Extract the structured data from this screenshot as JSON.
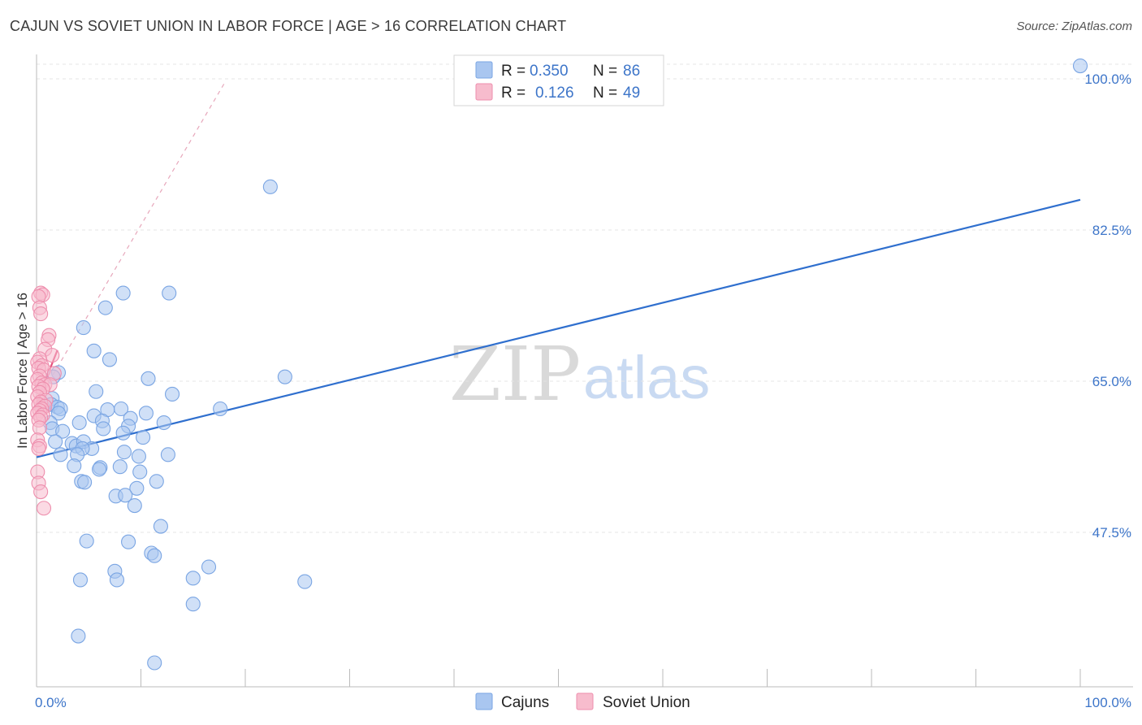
{
  "title": "CAJUN VS SOVIET UNION IN LABOR FORCE | AGE > 16 CORRELATION CHART",
  "source": "Source: ZipAtlas.com",
  "watermark": {
    "zip": "ZIP",
    "atlas": "atlas"
  },
  "legend_top": {
    "rows": [
      {
        "r_label": "R =",
        "r_value": "0.350",
        "n_label": "N =",
        "n_value": "86",
        "color": "#a9c6f0",
        "border": "#7aa5e3"
      },
      {
        "r_label": "R =",
        "r_value": "0.126",
        "n_label": "N =",
        "n_value": "49",
        "color": "#f7bccd",
        "border": "#ee8ead"
      }
    ]
  },
  "legend_bottom": [
    {
      "label": "Cajuns",
      "color": "#a9c6f0",
      "border": "#7aa5e3"
    },
    {
      "label": "Soviet Union",
      "color": "#f7bccd",
      "border": "#ee8ead"
    }
  ],
  "chart_data": {
    "type": "scatter",
    "title": "CAJUN VS SOVIET UNION IN LABOR FORCE | AGE > 16 CORRELATION CHART",
    "xlabel": "",
    "ylabel": "In Labor Force | Age > 16",
    "xlim": [
      0,
      100
    ],
    "ylim": [
      35.5,
      102
    ],
    "y_ticks": [
      47.5,
      65.0,
      82.5,
      100.0
    ],
    "y_tick_labels": [
      "47.5%",
      "65.0%",
      "82.5%",
      "100.0%"
    ],
    "x_tick_labels": [
      "0.0%",
      "100.0%"
    ],
    "grid": true,
    "legend_position": "top-center",
    "series": [
      {
        "name": "Cajuns",
        "color": "#7aa5e3",
        "fill": "#a9c6f0",
        "trend": {
          "x": [
            0,
            100
          ],
          "y": [
            56.2,
            86.0
          ],
          "color": "#2f6fce"
        },
        "points": [
          [
            100,
            101.5
          ],
          [
            22.4,
            87.5
          ],
          [
            8.3,
            75.2
          ],
          [
            12.7,
            75.2
          ],
          [
            6.6,
            73.5
          ],
          [
            4.5,
            71.2
          ],
          [
            5.5,
            68.5
          ],
          [
            7,
            67.5
          ],
          [
            2.1,
            66
          ],
          [
            10.7,
            65.3
          ],
          [
            23.8,
            65.5
          ],
          [
            1.6,
            65.5
          ],
          [
            1.5,
            63
          ],
          [
            5.7,
            63.8
          ],
          [
            13,
            63.5
          ],
          [
            1.4,
            62.3
          ],
          [
            2,
            62
          ],
          [
            0.6,
            62
          ],
          [
            2.3,
            61.8
          ],
          [
            6.8,
            61.7
          ],
          [
            8.1,
            61.8
          ],
          [
            17.6,
            61.8
          ],
          [
            2.1,
            61.3
          ],
          [
            10.5,
            61.3
          ],
          [
            5.5,
            61
          ],
          [
            9,
            60.7
          ],
          [
            6.3,
            60.4
          ],
          [
            1.3,
            60.2
          ],
          [
            4.1,
            60.2
          ],
          [
            12.2,
            60.2
          ],
          [
            8.8,
            59.8
          ],
          [
            1.5,
            59.5
          ],
          [
            2.5,
            59.2
          ],
          [
            6.4,
            59.5
          ],
          [
            8.3,
            59
          ],
          [
            10.2,
            58.5
          ],
          [
            1.8,
            58
          ],
          [
            3.4,
            57.8
          ],
          [
            3.8,
            57.5
          ],
          [
            4.5,
            58
          ],
          [
            5.3,
            57.2
          ],
          [
            4.4,
            57.2
          ],
          [
            8.4,
            56.8
          ],
          [
            9.8,
            56.3
          ],
          [
            12.6,
            56.5
          ],
          [
            2.3,
            56.5
          ],
          [
            3.9,
            56.5
          ],
          [
            3.6,
            55.2
          ],
          [
            6.1,
            55
          ],
          [
            6,
            54.8
          ],
          [
            8,
            55.1
          ],
          [
            9.9,
            54.5
          ],
          [
            4.3,
            53.4
          ],
          [
            4.6,
            53.3
          ],
          [
            11.5,
            53.4
          ],
          [
            9.6,
            52.6
          ],
          [
            7.6,
            51.7
          ],
          [
            8.5,
            51.8
          ],
          [
            9.4,
            50.6
          ],
          [
            11.9,
            48.2
          ],
          [
            4.8,
            46.5
          ],
          [
            8.8,
            46.4
          ],
          [
            11,
            45.1
          ],
          [
            11.3,
            44.8
          ],
          [
            16.5,
            43.5
          ],
          [
            7.5,
            43
          ],
          [
            4.2,
            42
          ],
          [
            7.7,
            42
          ],
          [
            15,
            42.2
          ],
          [
            25.7,
            41.8
          ],
          [
            15,
            39.2
          ],
          [
            4,
            35.5
          ],
          [
            11.3,
            32.4
          ]
        ]
      },
      {
        "name": "Soviet Union",
        "color": "#ee8ead",
        "fill": "#f7bccd",
        "trend": {
          "x": [
            0,
            2
          ],
          "y": [
            62.5,
            68.6
          ],
          "color": "#e5507d",
          "extension_x": [
            0,
            18
          ],
          "extension_y": [
            62.5,
            99.5
          ]
        },
        "points": [
          [
            0.4,
            75.2
          ],
          [
            0.6,
            75
          ],
          [
            0.2,
            74.8
          ],
          [
            0.3,
            73.5
          ],
          [
            0.4,
            72.8
          ],
          [
            1.2,
            70.3
          ],
          [
            1.1,
            69.8
          ],
          [
            0.8,
            68.7
          ],
          [
            1.5,
            68
          ],
          [
            0.3,
            67.6
          ],
          [
            0.1,
            67.2
          ],
          [
            0.5,
            66.8
          ],
          [
            0.2,
            66.5
          ],
          [
            0.7,
            66.3
          ],
          [
            1.7,
            65.9
          ],
          [
            0.3,
            65.6
          ],
          [
            0.1,
            65.2
          ],
          [
            0.5,
            64.8
          ],
          [
            0.8,
            64.6
          ],
          [
            1.3,
            64.6
          ],
          [
            0.2,
            64.4
          ],
          [
            0.6,
            64.1
          ],
          [
            0.3,
            63.7
          ],
          [
            0.1,
            63.2
          ],
          [
            0.9,
            62.8
          ],
          [
            0.4,
            62.6
          ],
          [
            0.2,
            62.3
          ],
          [
            0.8,
            62.1
          ],
          [
            0.5,
            61.8
          ],
          [
            0.3,
            61.6
          ],
          [
            0.1,
            61.3
          ],
          [
            0.6,
            61.1
          ],
          [
            0.4,
            60.8
          ],
          [
            0.2,
            60.5
          ],
          [
            0.3,
            59.6
          ],
          [
            0.1,
            58.2
          ],
          [
            0.3,
            57.5
          ],
          [
            0.2,
            57.2
          ],
          [
            0.1,
            54.5
          ],
          [
            0.2,
            53.2
          ],
          [
            0.4,
            52.2
          ],
          [
            0.7,
            50.3
          ]
        ]
      }
    ]
  }
}
